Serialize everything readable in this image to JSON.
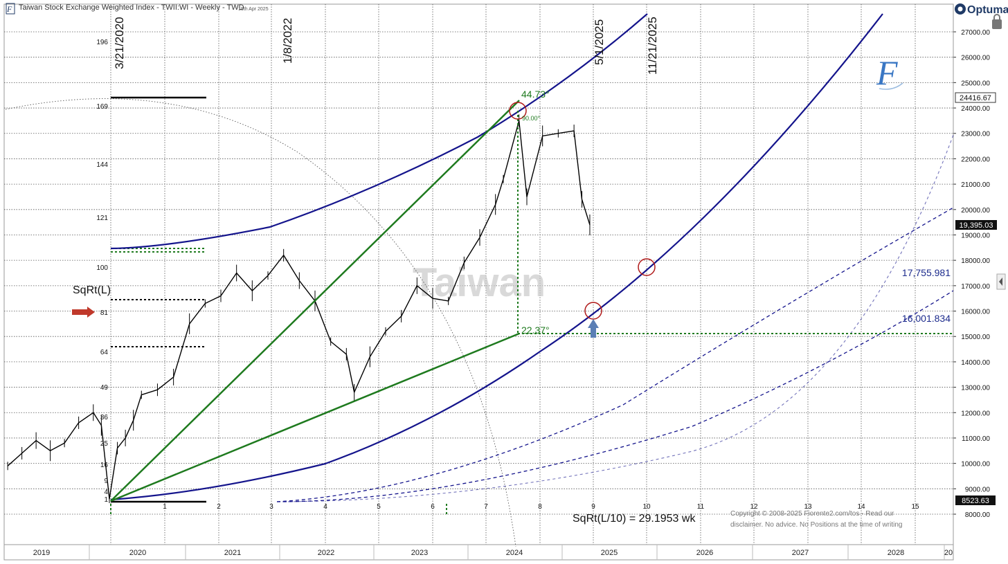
{
  "header": {
    "title": "Taiwan Stock Exchange Weighted Index - TWII:WI - Weekly - TWD",
    "date": "19th Apr 2025",
    "brand": "Optuma"
  },
  "watermark": "Taiwan",
  "signature_letter": "F",
  "annotations": {
    "date_labels": [
      "3/21/2020",
      "1/8/2022",
      "5/1/2025",
      "11/21/2025"
    ],
    "sqrt_label": "SqRt(L)",
    "angle_high": "44.73°",
    "angle_low": "22.37°",
    "angle_small": "90.00°",
    "level_1": "17,755.981",
    "level_2": "16,001.834",
    "formula": "SqRt(L/10) = 29.1953 wk",
    "copyright_line1": "Copyright © 2008-2025 Fiorente2.com/tos -  Read our",
    "copyright_line2": "disclaimer. No advice. No Positions at the time of writing"
  },
  "price_labels": {
    "high": "24416.67",
    "current": "19,395.03",
    "low": "8523.63"
  },
  "colors": {
    "green": "#1e7a1e",
    "navy": "#14148c",
    "red_circle": "#b01a1a",
    "arrow_red": "#c0392b",
    "arrow_blue": "#5b7fb5"
  },
  "chart_data": {
    "type": "line",
    "title": "Taiwan Stock Exchange Weighted Index - TWII:WI - Weekly - TWD",
    "x_axis_years": [
      "2019",
      "2020",
      "2021",
      "2022",
      "2023",
      "2024",
      "2025",
      "2026",
      "2027",
      "2028",
      "20"
    ],
    "right_axis": {
      "ticks": [
        8000,
        9000,
        10000,
        11000,
        12000,
        13000,
        14000,
        15000,
        16000,
        17000,
        18000,
        19000,
        20000,
        21000,
        22000,
        23000,
        24000,
        25000,
        26000,
        27000
      ],
      "tick_labels": [
        "8000.00",
        "9000.00",
        "10000.00",
        "11000.00",
        "12000.00",
        "13000.00",
        "14000.00",
        "15000.00",
        "16000.00",
        "17000.00",
        "18000.00",
        "19000.00",
        "20000.00",
        "21000.00",
        "22000.00",
        "23000.00",
        "24000.00",
        "25000.00",
        "26000.00",
        "27000.00"
      ],
      "range": [
        7600,
        27600
      ]
    },
    "left_axis_squares": [
      1,
      4,
      9,
      16,
      25,
      36,
      49,
      64,
      81,
      100,
      121,
      144,
      169,
      196
    ],
    "bottom_count_axis": [
      "1",
      "2",
      "3",
      "4",
      "5",
      "6",
      "7",
      "8",
      "9",
      "10",
      "11",
      "12",
      "13",
      "14",
      "15"
    ],
    "series": [
      {
        "x": [
          "2019-01",
          "2019-03",
          "2019-05",
          "2019-07",
          "2019-09",
          "2019-11",
          "2020-01",
          "2020-02",
          "2020-03",
          "2020-04",
          "2020-05",
          "2020-06",
          "2020-07",
          "2020-09",
          "2020-11",
          "2021-01",
          "2021-03",
          "2021-05",
          "2021-07",
          "2021-09",
          "2021-11",
          "2022-01",
          "2022-03",
          "2022-05",
          "2022-07",
          "2022-09",
          "2022-10",
          "2022-12",
          "2023-02",
          "2023-04",
          "2023-06",
          "2023-08",
          "2023-10",
          "2023-12",
          "2024-02",
          "2024-04",
          "2024-05",
          "2024-07",
          "2024-08",
          "2024-10",
          "2024-12",
          "2025-02",
          "2025-03",
          "2025-04"
        ],
        "values": [
          9900,
          10400,
          10900,
          10500,
          10800,
          11600,
          12000,
          11500,
          8600,
          10600,
          11000,
          11700,
          12700,
          12900,
          13400,
          15500,
          16300,
          16600,
          17500,
          16800,
          17400,
          18200,
          17200,
          16400,
          14800,
          14300,
          12800,
          14200,
          15200,
          15800,
          17000,
          16500,
          16400,
          17900,
          18900,
          20200,
          21200,
          23500,
          20500,
          22900,
          23000,
          23100,
          20400,
          19395
        ]
      }
    ]
  }
}
